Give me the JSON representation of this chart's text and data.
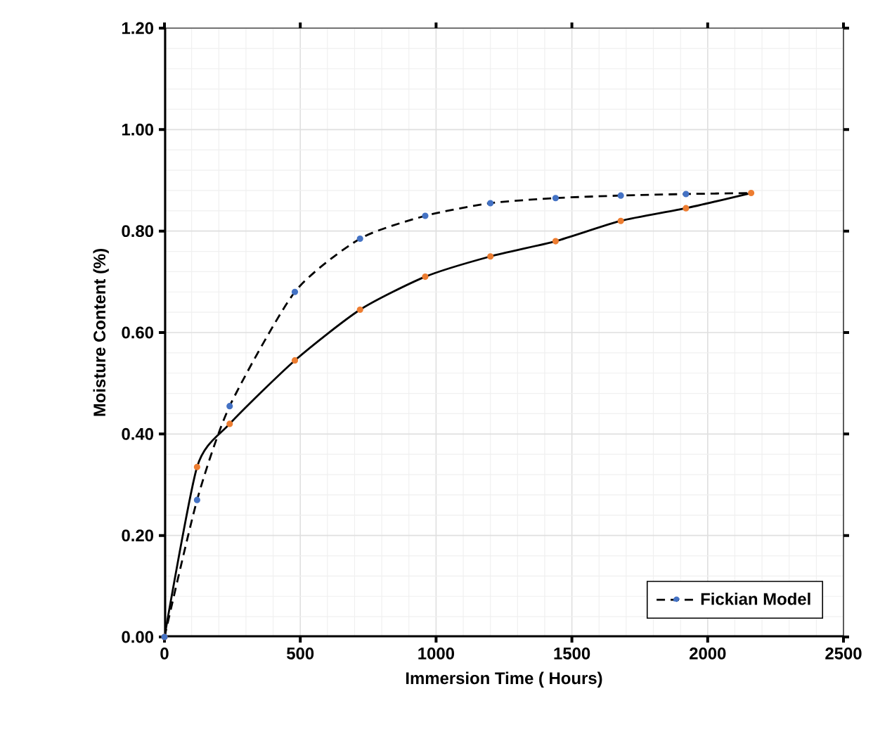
{
  "chart_data": {
    "type": "line",
    "xlabel": "Immersion Time  ( Hours)",
    "ylabel": "Moisture Content (%)",
    "x": [
      0,
      120,
      240,
      480,
      720,
      960,
      1200,
      1440,
      1680,
      1920,
      2160
    ],
    "series": [
      {
        "color": "#000000",
        "line_style": "solid",
        "marker": "none",
        "values": [
          0,
          0.335,
          0.42,
          0.545,
          0.645,
          0.71,
          0.75,
          0.78,
          0.82,
          0.845,
          0.875
        ]
      },
      {
        "type": "scatter",
        "color": "#ed7d31",
        "marker": "circle",
        "values": [
          0,
          0.335,
          0.42,
          0.545,
          0.645,
          0.71,
          0.75,
          0.78,
          0.82,
          0.845,
          0.875
        ]
      },
      {
        "name": "Fickian Model",
        "color": "#000000",
        "line_style": "dashed",
        "marker": "none",
        "values": [
          0,
          0.27,
          0.455,
          0.68,
          0.785,
          0.83,
          0.855,
          0.865,
          0.87,
          0.873,
          0.875
        ]
      },
      {
        "type": "scatter",
        "color": "#4472c4",
        "marker": "circle",
        "values": [
          0,
          0.27,
          0.455,
          0.68,
          0.785,
          0.83,
          0.855,
          0.865,
          0.87,
          0.873,
          null
        ]
      }
    ],
    "xlim": [
      0,
      2500
    ],
    "xticks": [
      0,
      500,
      1000,
      1500,
      2000,
      2500
    ],
    "ylim": [
      0,
      1.2
    ],
    "yticks": [
      {
        "value": 0,
        "label": "0.00"
      },
      {
        "value": 0.2,
        "label": "0.20"
      },
      {
        "value": 0.4,
        "label": "0.40"
      },
      {
        "value": 0.6,
        "label": "0.60"
      },
      {
        "value": 0.8,
        "label": "0.80"
      },
      {
        "value": 1.0,
        "label": "1.00"
      },
      {
        "value": 1.2,
        "label": "1.20"
      }
    ],
    "grid": true,
    "legend": "bottom right"
  }
}
